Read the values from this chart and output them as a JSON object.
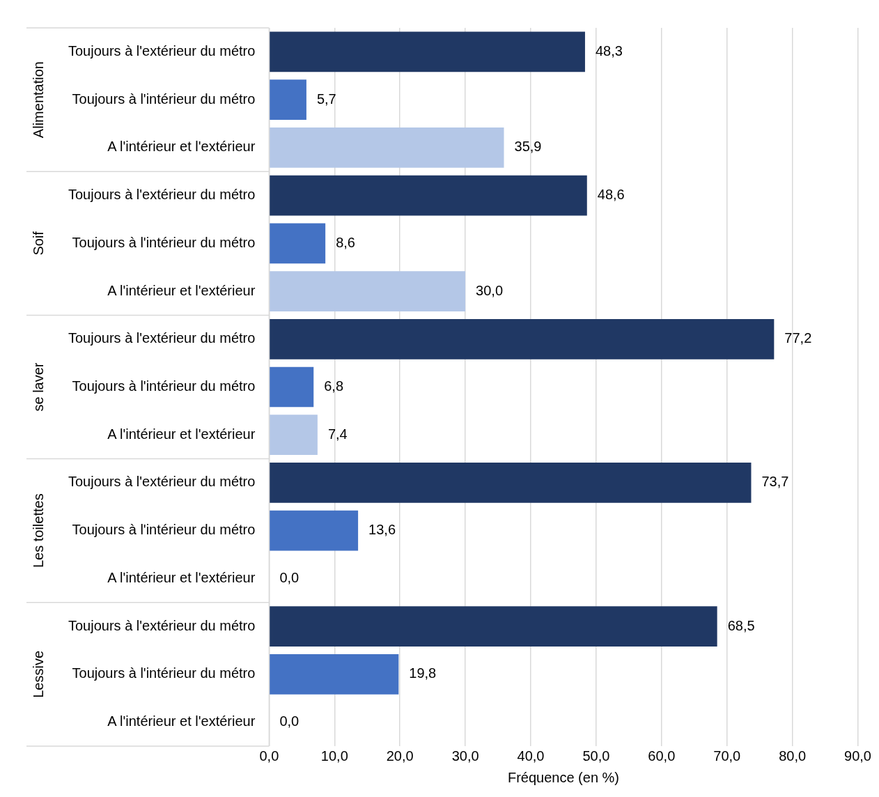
{
  "chart_data": {
    "type": "bar",
    "orientation": "horizontal",
    "categories": [
      "Toujours à l'extérieur du métro",
      "Toujours à l'intérieur du métro",
      "A l'intérieur et l'extérieur",
      "Toujours à l'extérieur du métro",
      "Toujours à l'intérieur du métro",
      "A l'intérieur et l'extérieur",
      "Toujours à l'extérieur du métro",
      "Toujours à l'intérieur du métro",
      "A l'intérieur et l'extérieur",
      "Toujours à l'extérieur du métro",
      "Toujours à l'intérieur du métro",
      "A l'intérieur et l'extérieur",
      "Toujours à l'extérieur du métro",
      "Toujours à l'intérieur du métro",
      "A l'intérieur et l'extérieur"
    ],
    "values": [
      48.3,
      5.7,
      35.9,
      48.6,
      8.6,
      30.0,
      77.2,
      6.8,
      7.4,
      73.7,
      13.6,
      0.0,
      68.5,
      19.8,
      0.0
    ],
    "value_labels": [
      "48,3",
      "5,7",
      "35,9",
      "48,6",
      "8,6",
      "30,0",
      "77,2",
      "6,8",
      "7,4",
      "73,7",
      "13,6",
      "0,0",
      "68,5",
      "19,8",
      "0,0"
    ],
    "colors": [
      "#203864",
      "#4472c4",
      "#b4c7e7",
      "#203864",
      "#4472c4",
      "#b4c7e7",
      "#203864",
      "#4472c4",
      "#b4c7e7",
      "#203864",
      "#4472c4",
      "#b4c7e7",
      "#203864",
      "#4472c4",
      "#b4c7e7"
    ],
    "annotations": [
      "Alimentation",
      "Soif",
      "se laver",
      "Les toilettes",
      "Lessive"
    ],
    "xlabel": "Fréquence (en %)",
    "xlim": [
      0,
      90
    ],
    "xticks": [
      {
        "value": 0,
        "label": "0,0"
      },
      {
        "value": 10,
        "label": "10,0"
      },
      {
        "value": 20,
        "label": "20,0"
      },
      {
        "value": 30,
        "label": "30,0"
      },
      {
        "value": 40,
        "label": "40,0"
      },
      {
        "value": 50,
        "label": "50,0"
      },
      {
        "value": 60,
        "label": "60,0"
      },
      {
        "value": 70,
        "label": "70,0"
      },
      {
        "value": 80,
        "label": "80,0"
      },
      {
        "value": 90,
        "label": "90,0"
      }
    ],
    "grid": "x",
    "legend": false
  }
}
